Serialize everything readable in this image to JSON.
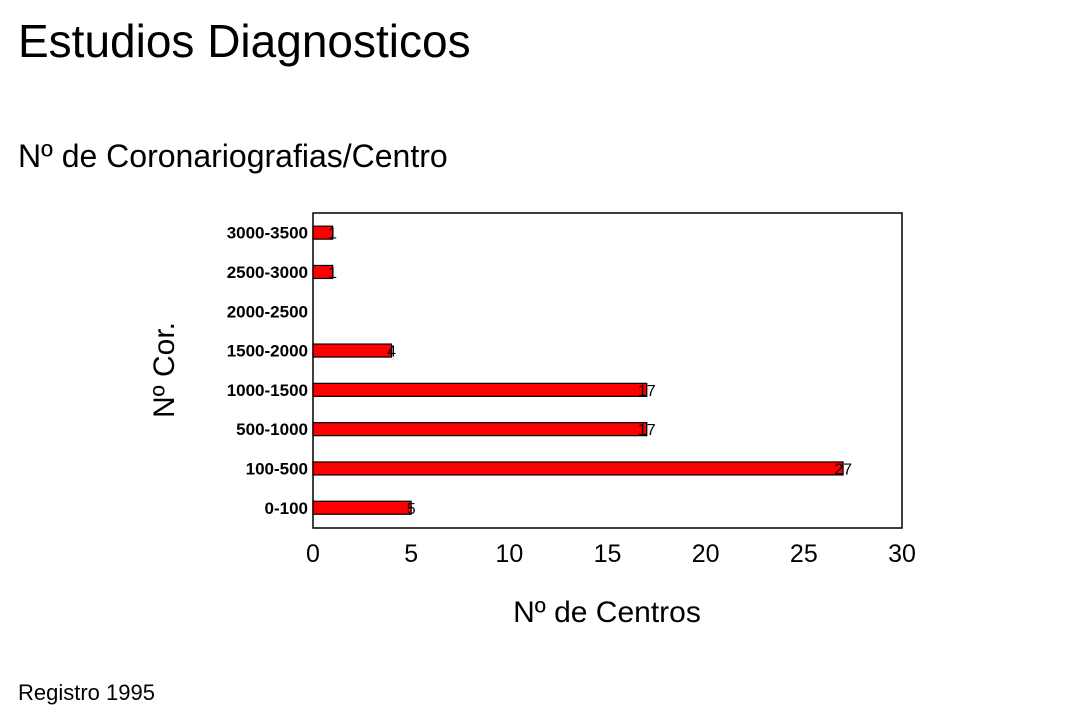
{
  "page": {
    "title": "Estudios Diagnosticos",
    "subtitle": "Nº de Coronariografias/Centro",
    "footer": "Registro 1995"
  },
  "chart_data": {
    "type": "bar",
    "orientation": "horizontal",
    "categories": [
      "0-100",
      "100-500",
      "500-1000",
      "1000-1500",
      "1500-2000",
      "2000-2500",
      "2500-3000",
      "3000-3500"
    ],
    "values": [
      5,
      27,
      17,
      17,
      4,
      0,
      1,
      1
    ],
    "data_labels": [
      "5",
      "27",
      "17",
      "17",
      "4",
      "",
      "1",
      "1"
    ],
    "xlabel": "Nº de Centros",
    "ylabel": "Nº Cor.",
    "xlim": [
      0,
      30
    ],
    "xticks": [
      "0",
      "5",
      "10",
      "15",
      "20",
      "25",
      "30"
    ],
    "grid": false,
    "legend": "none",
    "colors": {
      "bar": "#ff0000",
      "bar_stroke": "#000000"
    }
  }
}
